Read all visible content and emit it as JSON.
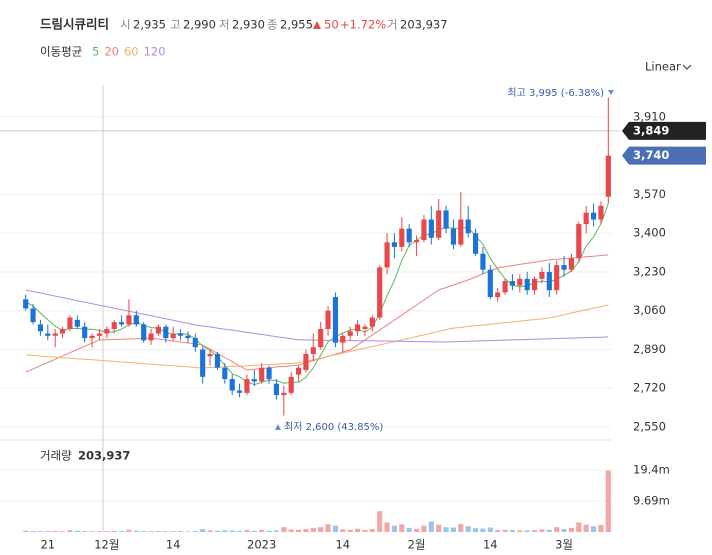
{
  "header": {
    "name": "드림시큐리티",
    "open_label": "시",
    "open": "2,935",
    "high_label": "고",
    "high": "2,990",
    "low_label": "저",
    "low": "2,930",
    "close_label": "종",
    "close": "2,955",
    "change": "50",
    "change_pct": "+1.72%",
    "volume_label": "거",
    "volume": "203,937",
    "ma_label": "이동평균",
    "scale_mode": "Linear"
  },
  "chart_data": {
    "type": "candlestick",
    "categories": [
      null,
      null,
      null,
      "21",
      null,
      null,
      null,
      null,
      null,
      null,
      null,
      "12월",
      null,
      null,
      null,
      null,
      null,
      null,
      null,
      null,
      "14",
      null,
      null,
      null,
      null,
      null,
      null,
      null,
      null,
      null,
      null,
      null,
      "2023",
      null,
      null,
      null,
      null,
      null,
      null,
      null,
      null,
      null,
      null,
      "14",
      null,
      null,
      null,
      null,
      null,
      null,
      null,
      null,
      null,
      "2월",
      null,
      null,
      null,
      null,
      null,
      null,
      null,
      null,
      null,
      "14",
      null,
      null,
      null,
      null,
      null,
      null,
      null,
      null,
      null,
      "3월",
      null,
      null,
      null,
      null,
      null,
      null
    ],
    "open": [
      3110,
      3070,
      3000,
      2960,
      2950,
      2960,
      2980,
      3020,
      2990,
      2940,
      2950,
      2960,
      2980,
      3010,
      3000,
      3040,
      3000,
      2930,
      2960,
      2990,
      2940,
      2960,
      2950,
      2940,
      2890,
      2860,
      2870,
      2810,
      2760,
      2710,
      2700,
      2760,
      2750,
      2810,
      2740,
      2690,
      2700,
      2780,
      2800,
      2870,
      2900,
      2980,
      3120,
      2920,
      2950,
      2970,
      2980,
      2990,
      3030,
      3250,
      3360,
      3340,
      3420,
      3360,
      3370,
      3460,
      3380,
      3500,
      3420,
      3350,
      3460,
      3400,
      3310,
      3240,
      3120,
      3140,
      3190,
      3170,
      3200,
      3150,
      3200,
      3230,
      3150,
      3260,
      3240,
      3290,
      3440,
      3490,
      3460,
      3560
    ],
    "high": [
      3130,
      3090,
      3020,
      3000,
      2980,
      2990,
      3040,
      3040,
      3010,
      2960,
      2980,
      2990,
      3020,
      3040,
      3110,
      3060,
      3010,
      2980,
      3000,
      3000,
      2990,
      2980,
      2970,
      2960,
      2900,
      2890,
      2880,
      2830,
      2780,
      2740,
      2780,
      2800,
      2830,
      2820,
      2760,
      2730,
      2790,
      2820,
      2890,
      2960,
      3010,
      3080,
      3140,
      2960,
      2990,
      3020,
      3000,
      3040,
      3260,
      3400,
      3400,
      3470,
      3440,
      3390,
      3480,
      3520,
      3550,
      3520,
      3460,
      3580,
      3520,
      3420,
      3340,
      3260,
      3160,
      3200,
      3220,
      3220,
      3230,
      3210,
      3250,
      3270,
      3280,
      3300,
      3310,
      3450,
      3520,
      3530,
      3540,
      3995
    ],
    "low": [
      3060,
      3000,
      2950,
      2930,
      2900,
      2940,
      2970,
      2980,
      2920,
      2900,
      2930,
      2940,
      2960,
      2990,
      2990,
      2990,
      2920,
      2910,
      2950,
      2920,
      2930,
      2930,
      2920,
      2880,
      2740,
      2820,
      2800,
      2740,
      2690,
      2680,
      2690,
      2730,
      2740,
      2740,
      2670,
      2600,
      2690,
      2750,
      2790,
      2840,
      2890,
      2950,
      2900,
      2880,
      2930,
      2950,
      2950,
      2970,
      3020,
      3220,
      3290,
      3320,
      3340,
      3300,
      3360,
      3350,
      3370,
      3400,
      3330,
      3340,
      3380,
      3300,
      3220,
      3110,
      3100,
      3130,
      3150,
      3140,
      3130,
      3130,
      3180,
      3120,
      3130,
      3210,
      3230,
      3270,
      3400,
      3430,
      3440,
      3530
    ],
    "close": [
      3070,
      3010,
      2970,
      2950,
      2960,
      2980,
      3030,
      2990,
      2940,
      2950,
      2960,
      2980,
      3010,
      3000,
      3040,
      3000,
      2930,
      2960,
      2990,
      2940,
      2960,
      2950,
      2940,
      2900,
      2770,
      2870,
      2810,
      2760,
      2710,
      2700,
      2760,
      2750,
      2810,
      2760,
      2690,
      2700,
      2770,
      2810,
      2870,
      2900,
      2980,
      3060,
      2920,
      2950,
      2970,
      3000,
      2990,
      3030,
      3250,
      3360,
      3340,
      3420,
      3360,
      3370,
      3460,
      3380,
      3500,
      3420,
      3350,
      3460,
      3400,
      3310,
      3240,
      3120,
      3140,
      3190,
      3170,
      3200,
      3150,
      3200,
      3230,
      3150,
      3260,
      3240,
      3290,
      3440,
      3490,
      3460,
      3520,
      3740
    ],
    "volume": [
      400000,
      300000,
      250000,
      300000,
      350000,
      300000,
      600000,
      400000,
      300000,
      250000,
      300000,
      250000,
      350000,
      300000,
      700000,
      400000,
      300000,
      250000,
      300000,
      250000,
      250000,
      300000,
      200000,
      300000,
      900000,
      500000,
      400000,
      500000,
      450000,
      350000,
      600000,
      350000,
      700000,
      400000,
      500000,
      1500000,
      800000,
      700000,
      900000,
      1200000,
      1500000,
      2400000,
      2000000,
      800000,
      700000,
      1000000,
      600000,
      900000,
      6500000,
      3000000,
      2000000,
      2400000,
      1300000,
      1000000,
      2000000,
      3300000,
      2300000,
      1500000,
      1400000,
      2500000,
      1800000,
      1200000,
      1100000,
      1400000,
      600000,
      700000,
      600000,
      500000,
      500000,
      600000,
      800000,
      700000,
      1500000,
      900000,
      1300000,
      3000000,
      2300000,
      1800000,
      2200000,
      19200000
    ],
    "up_color": "#e8474b",
    "down_color": "#1b74d6",
    "up_volume_color": "#f2a6a8",
    "down_volume_color": "#9cc3ee",
    "moving_averages": [
      {
        "name": "5",
        "color": "#5cb85c",
        "values": [
          3100,
          3080,
          3050,
          3020,
          2992,
          2974,
          2982,
          2982,
          2980,
          2978,
          2974,
          2964,
          2968,
          2980,
          2998,
          3010,
          2996,
          2986,
          2984,
          2964,
          2956,
          2960,
          2956,
          2938,
          2904,
          2886,
          2858,
          2822,
          2784,
          2770,
          2748,
          2736,
          2746,
          2756,
          2754,
          2742,
          2746,
          2746,
          2768,
          2810,
          2866,
          2924,
          2946,
          2962,
          2976,
          2980,
          2966,
          2988,
          3048,
          3126,
          3194,
          3280,
          3346,
          3370,
          3390,
          3398,
          3414,
          3426,
          3422,
          3422,
          3426,
          3388,
          3352,
          3290,
          3242,
          3200,
          3172,
          3164,
          3170,
          3182,
          3190,
          3186,
          3198,
          3216,
          3234,
          3276,
          3344,
          3384,
          3440,
          3530
        ]
      },
      {
        "name": "20",
        "color": "#ee8080",
        "values": [
          2791,
          2805,
          2819,
          2833,
          2847,
          2862,
          2876,
          2890,
          2904,
          2918,
          2932,
          2933,
          2934,
          2935,
          2936,
          2937,
          2939,
          2940,
          2936,
          2931,
          2927,
          2923,
          2919,
          2914,
          2910,
          2892,
          2873,
          2855,
          2837,
          2818,
          2800,
          2803,
          2806,
          2810,
          2813,
          2816,
          2819,
          2822,
          2831,
          2841,
          2850,
          2860,
          2869,
          2879,
          2888,
          2910,
          2932,
          2954,
          2975,
          2997,
          3019,
          3041,
          3063,
          3085,
          3107,
          3129,
          3151,
          3162,
          3173,
          3184,
          3195,
          3208,
          3222,
          3235,
          3248,
          3253,
          3258,
          3263,
          3268,
          3273,
          3278,
          3283,
          3286,
          3288,
          3291,
          3294,
          3297,
          3299,
          3302,
          3305
        ]
      },
      {
        "name": "60",
        "color": "#f3b068",
        "values": [
          2866,
          2864,
          2861,
          2859,
          2857,
          2854,
          2852,
          2849,
          2847,
          2845,
          2843,
          2840,
          2838,
          2835,
          2833,
          2831,
          2828,
          2826,
          2823,
          2821,
          2819,
          2816,
          2814,
          2811,
          2809,
          2811,
          2812,
          2814,
          2816,
          2817,
          2819,
          2821,
          2822,
          2824,
          2826,
          2828,
          2829,
          2831,
          2838,
          2845,
          2852,
          2860,
          2867,
          2874,
          2881,
          2888,
          2896,
          2903,
          2910,
          2917,
          2924,
          2932,
          2939,
          2947,
          2954,
          2962,
          2969,
          2977,
          2984,
          2987,
          2991,
          2994,
          2997,
          3001,
          3004,
          3008,
          3011,
          3014,
          3018,
          3021,
          3024,
          3028,
          3035,
          3042,
          3050,
          3057,
          3064,
          3071,
          3078,
          3085
        ]
      },
      {
        "name": "120",
        "color": "#b58ae0",
        "values": [
          3151,
          3144,
          3138,
          3131,
          3124,
          3118,
          3111,
          3104,
          3098,
          3091,
          3084,
          3078,
          3071,
          3064,
          3058,
          3051,
          3045,
          3038,
          3031,
          3025,
          3018,
          3011,
          3005,
          2998,
          2993,
          2989,
          2984,
          2979,
          2975,
          2970,
          2965,
          2960,
          2956,
          2951,
          2946,
          2942,
          2937,
          2932,
          2932,
          2931,
          2931,
          2930,
          2930,
          2929,
          2929,
          2928,
          2928,
          2928,
          2927,
          2927,
          2926,
          2926,
          2925,
          2925,
          2924,
          2924,
          2923,
          2923,
          2924,
          2925,
          2926,
          2927,
          2928,
          2929,
          2930,
          2931,
          2932,
          2933,
          2934,
          2935,
          2936,
          2937,
          2938,
          2939,
          2940,
          2941,
          2942,
          2943,
          2944,
          2945
        ]
      }
    ],
    "ylim": [
      2493,
      4050
    ],
    "yticks": [
      {
        "value": 2550,
        "label": "2,550"
      },
      {
        "value": 2720,
        "label": "2,720"
      },
      {
        "value": 2890,
        "label": "2,890"
      },
      {
        "value": 3060,
        "label": "3,060"
      },
      {
        "value": 3230,
        "label": "3,230"
      },
      {
        "value": 3400,
        "label": "3,400"
      },
      {
        "value": 3570,
        "label": "3,570"
      },
      {
        "value": 3910,
        "label": "3,910"
      }
    ],
    "volume_title": "거래량",
    "volume_value": "203,937",
    "volume_lim": [
      0,
      28800000
    ],
    "volume_ticks": [
      {
        "value": 9690000,
        "label": "9.69m"
      },
      {
        "value": 19400000,
        "label": "19.4m"
      }
    ],
    "crosshair": {
      "value": 3849,
      "label": "3,849"
    },
    "last_price": {
      "value": 3740,
      "label": "3,740"
    },
    "high_annotation": "최고 3,995 (-6.38%)",
    "low_annotation": "최저 2,600 (43.85%)",
    "grid": true
  }
}
